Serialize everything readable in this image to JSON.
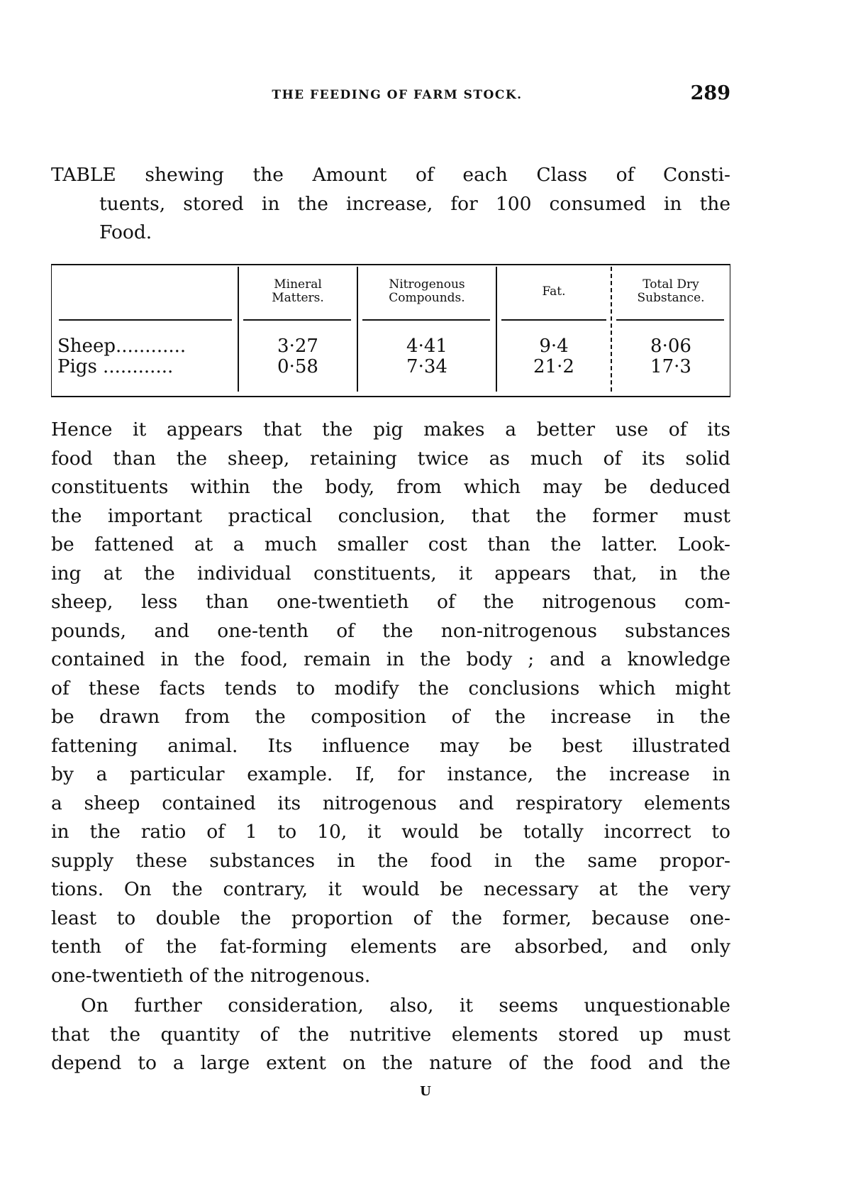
{
  "header": {
    "running_title": "THE FEEDING OF FARM STOCK.",
    "page_number": "289"
  },
  "caption": {
    "lines": [
      "TABLE shewing the Amount of each Class of Consti-",
      "tuents, stored in the increase, for 100 consumed in the",
      "Food."
    ]
  },
  "table": {
    "columns": [
      "",
      "Mineral Matters.",
      "Nitrogenous Compounds.",
      "Fat.",
      "Total Dry Substance."
    ],
    "column_lines": [
      [
        "Mineral",
        "Matters."
      ],
      [
        "Nitrogenous",
        "Compounds."
      ],
      [
        "Fat."
      ],
      [
        "Total Dry",
        "Substance."
      ]
    ],
    "rows": [
      {
        "label": "Sheep............",
        "values": [
          "3·27",
          "4·41",
          "9·4",
          "8·06"
        ]
      },
      {
        "label": "Pigs ............",
        "values": [
          "0·58",
          "7·34",
          "21·2",
          "17·3"
        ]
      }
    ]
  },
  "body": {
    "paragraph1": [
      "Hence it appears that the pig makes a better use of its",
      "food than the sheep, retaining twice as much of its solid",
      "constituents within the body, from which may be deduced",
      "the important practical conclusion, that the former must",
      "be fattened at a much smaller cost than the latter. Look-",
      "ing at the individual constituents, it appears that, in the",
      "sheep, less than one-twentieth of the nitrogenous com-",
      "pounds, and one-tenth of the non-nitrogenous substances",
      "contained in the food, remain in the body ; and a knowledge",
      "of these facts tends to modify the conclusions which might",
      "be drawn from the composition of the increase in the",
      "fattening animal. Its influence may be best illustrated",
      "by a particular example. If, for instance, the increase in",
      "a sheep contained its nitrogenous and respiratory elements",
      "in the ratio of 1 to 10, it would be totally incorrect to",
      "supply these substances in the food in the same propor-",
      "tions. On the contrary, it would be necessary at the very",
      "least to double the proportion of the former, because one-",
      "tenth of the fat-forming elements are absorbed, and only",
      "one-twentieth of the nitrogenous."
    ],
    "paragraph2": [
      "On further consideration, also, it seems unquestionable",
      "that the quantity of the nutritive elements stored up must",
      "depend to a large extent on the nature of the food and the"
    ]
  },
  "footer": {
    "signature": "U"
  }
}
